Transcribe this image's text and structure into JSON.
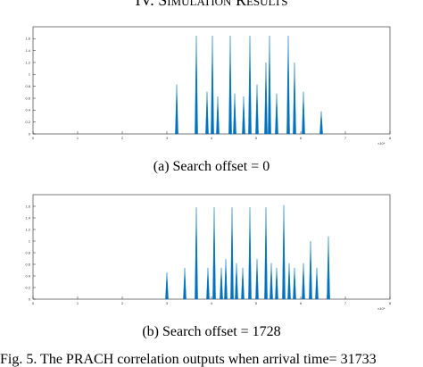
{
  "header": {
    "title": "IV. Simulation Results"
  },
  "chart_data": [
    {
      "type": "stem",
      "caption": "(a) Search offset = 0",
      "x_exponent": "×10⁴",
      "color": "#0072bd",
      "xlim": [
        0,
        8
      ],
      "xticks": [
        0,
        1,
        2,
        3,
        4,
        5,
        6,
        7,
        8
      ],
      "ylim": [
        0,
        1.8
      ],
      "yticks": [
        0,
        0.2,
        0.4,
        0.6,
        0.8,
        1,
        1.2,
        1.4,
        1.6
      ],
      "x": [
        3.22,
        3.66,
        3.9,
        4.02,
        4.14,
        4.42,
        4.52,
        4.72,
        4.86,
        5.02,
        5.22,
        5.3,
        5.46,
        5.72,
        5.86,
        6.06,
        6.46
      ],
      "values": [
        0.83,
        1.65,
        0.71,
        1.65,
        0.63,
        1.65,
        0.68,
        0.63,
        1.65,
        0.83,
        1.2,
        1.65,
        0.68,
        1.65,
        1.2,
        0.71,
        0.38
      ]
    },
    {
      "type": "stem",
      "caption": "(b) Search offset = 1728",
      "x_exponent": "×10⁴",
      "color": "#0072bd",
      "xlim": [
        0,
        8
      ],
      "xticks": [
        0,
        1,
        2,
        3,
        4,
        5,
        6,
        7,
        8
      ],
      "ylim": [
        0,
        1.8
      ],
      "yticks": [
        0,
        0.2,
        0.4,
        0.6,
        0.8,
        1,
        1.2,
        1.4,
        1.6
      ],
      "x": [
        3.0,
        3.4,
        3.66,
        3.92,
        4.06,
        4.22,
        4.32,
        4.46,
        4.56,
        4.7,
        4.86,
        5.02,
        5.22,
        5.34,
        5.46,
        5.62,
        5.74,
        5.86,
        6.06,
        6.22,
        6.36,
        6.62
      ],
      "values": [
        0.46,
        0.54,
        1.58,
        0.54,
        1.58,
        0.54,
        0.69,
        1.58,
        0.62,
        0.54,
        1.58,
        0.69,
        1.58,
        0.62,
        0.54,
        1.62,
        0.62,
        0.54,
        0.62,
        1.0,
        0.54,
        1.08
      ]
    }
  ],
  "figure_caption": "Fig. 5.   The PRACH correlation outputs when arrival time= 31733"
}
